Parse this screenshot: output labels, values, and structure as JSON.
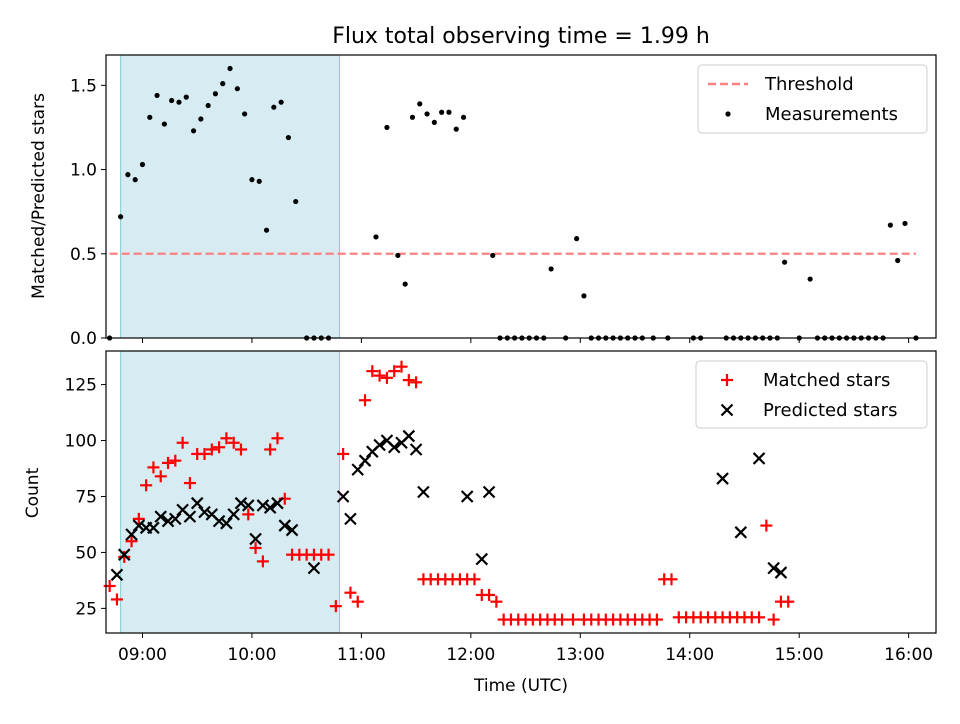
{
  "title": "Flux total observing time = 1.99 h",
  "xlabel": "Time (UTC)",
  "colors": {
    "threshold": "#ff8080",
    "matched": "#ff0000",
    "predicted": "#000000",
    "measurements": "#000000",
    "shade": "#add8e6"
  },
  "chart_data": [
    {
      "type": "scatter",
      "ylabel": "Matched/Predicted stars",
      "xlim": [
        "08:40",
        "16:15"
      ],
      "ylim": [
        0,
        1.68
      ],
      "yticks": [
        0.0,
        0.5,
        1.0,
        1.5
      ],
      "xticks": [
        "09:00",
        "10:00",
        "11:00",
        "12:00",
        "13:00",
        "14:00",
        "15:00",
        "16:00"
      ],
      "shaded_span": [
        "08:48",
        "10:48"
      ],
      "legend": {
        "position": "top-right",
        "entries": [
          "Threshold",
          "Measurements"
        ]
      },
      "threshold": {
        "name": "Threshold",
        "y": 0.5,
        "x_range": [
          "08:42",
          "16:04"
        ]
      },
      "series": [
        {
          "name": "Measurements",
          "points": [
            [
              "08:42",
              0.0
            ],
            [
              "08:48",
              0.72
            ],
            [
              "08:52",
              0.97
            ],
            [
              "08:56",
              0.94
            ],
            [
              "09:00",
              1.03
            ],
            [
              "09:04",
              1.31
            ],
            [
              "09:08",
              1.44
            ],
            [
              "09:12",
              1.27
            ],
            [
              "09:16",
              1.41
            ],
            [
              "09:20",
              1.4
            ],
            [
              "09:24",
              1.43
            ],
            [
              "09:28",
              1.23
            ],
            [
              "09:32",
              1.3
            ],
            [
              "09:36",
              1.38
            ],
            [
              "09:40",
              1.45
            ],
            [
              "09:44",
              1.51
            ],
            [
              "09:48",
              1.6
            ],
            [
              "09:52",
              1.48
            ],
            [
              "09:56",
              1.33
            ],
            [
              "10:00",
              0.94
            ],
            [
              "10:04",
              0.93
            ],
            [
              "10:08",
              0.64
            ],
            [
              "10:12",
              1.37
            ],
            [
              "10:16",
              1.4
            ],
            [
              "10:20",
              1.19
            ],
            [
              "10:24",
              0.81
            ],
            [
              "10:30",
              0.0
            ],
            [
              "10:34",
              0.0
            ],
            [
              "10:38",
              0.0
            ],
            [
              "10:42",
              0.0
            ],
            [
              "11:08",
              0.6
            ],
            [
              "11:14",
              1.25
            ],
            [
              "11:20",
              0.49
            ],
            [
              "11:24",
              0.32
            ],
            [
              "11:28",
              1.31
            ],
            [
              "11:32",
              1.39
            ],
            [
              "11:36",
              1.33
            ],
            [
              "11:40",
              1.28
            ],
            [
              "11:44",
              1.34
            ],
            [
              "11:48",
              1.34
            ],
            [
              "11:52",
              1.24
            ],
            [
              "11:56",
              1.31
            ],
            [
              "12:12",
              0.49
            ],
            [
              "12:16",
              0.0
            ],
            [
              "12:20",
              0.0
            ],
            [
              "12:24",
              0.0
            ],
            [
              "12:28",
              0.0
            ],
            [
              "12:32",
              0.0
            ],
            [
              "12:36",
              0.0
            ],
            [
              "12:40",
              0.0
            ],
            [
              "12:44",
              0.41
            ],
            [
              "12:52",
              0.0
            ],
            [
              "12:58",
              0.59
            ],
            [
              "13:02",
              0.25
            ],
            [
              "13:06",
              0.0
            ],
            [
              "13:10",
              0.0
            ],
            [
              "13:14",
              0.0
            ],
            [
              "13:18",
              0.0
            ],
            [
              "13:22",
              0.0
            ],
            [
              "13:26",
              0.0
            ],
            [
              "13:30",
              0.0
            ],
            [
              "13:34",
              0.0
            ],
            [
              "13:40",
              0.0
            ],
            [
              "13:48",
              0.0
            ],
            [
              "14:02",
              0.0
            ],
            [
              "14:06",
              0.0
            ],
            [
              "14:20",
              0.0
            ],
            [
              "14:24",
              0.0
            ],
            [
              "14:28",
              0.0
            ],
            [
              "14:32",
              0.0
            ],
            [
              "14:36",
              0.0
            ],
            [
              "14:40",
              0.0
            ],
            [
              "14:44",
              0.0
            ],
            [
              "14:48",
              0.0
            ],
            [
              "14:52",
              0.45
            ],
            [
              "15:00",
              0.0
            ],
            [
              "15:06",
              0.35
            ],
            [
              "15:10",
              0.0
            ],
            [
              "15:14",
              0.0
            ],
            [
              "15:18",
              0.0
            ],
            [
              "15:22",
              0.0
            ],
            [
              "15:26",
              0.0
            ],
            [
              "15:30",
              0.0
            ],
            [
              "15:34",
              0.0
            ],
            [
              "15:38",
              0.0
            ],
            [
              "15:42",
              0.0
            ],
            [
              "15:46",
              0.0
            ],
            [
              "15:50",
              0.67
            ],
            [
              "15:54",
              0.46
            ],
            [
              "15:58",
              0.68
            ],
            [
              "16:04",
              0.0
            ]
          ]
        }
      ]
    },
    {
      "type": "scatter",
      "ylabel": "Count",
      "xlabel": "Time (UTC)",
      "xlim": [
        "08:40",
        "16:15"
      ],
      "ylim": [
        14,
        140
      ],
      "yticks": [
        25,
        50,
        75,
        100,
        125
      ],
      "xticks": [
        "09:00",
        "10:00",
        "11:00",
        "12:00",
        "13:00",
        "14:00",
        "15:00",
        "16:00"
      ],
      "shaded_span": [
        "08:48",
        "10:48"
      ],
      "legend": {
        "position": "top-right",
        "entries": [
          "Matched stars",
          "Predicted stars"
        ]
      },
      "series": [
        {
          "name": "Matched stars",
          "marker": "plus",
          "points": [
            [
              "08:42",
              35
            ],
            [
              "08:46",
              29
            ],
            [
              "08:50",
              48
            ],
            [
              "08:54",
              55
            ],
            [
              "08:58",
              65
            ],
            [
              "09:02",
              80
            ],
            [
              "09:06",
              88
            ],
            [
              "09:10",
              84
            ],
            [
              "09:14",
              90
            ],
            [
              "09:18",
              91
            ],
            [
              "09:22",
              99
            ],
            [
              "09:26",
              81
            ],
            [
              "09:30",
              94
            ],
            [
              "09:34",
              94
            ],
            [
              "09:38",
              96
            ],
            [
              "09:42",
              97
            ],
            [
              "09:46",
              101
            ],
            [
              "09:50",
              99
            ],
            [
              "09:54",
              96
            ],
            [
              "09:58",
              67
            ],
            [
              "10:02",
              52
            ],
            [
              "10:06",
              46
            ],
            [
              "10:10",
              96
            ],
            [
              "10:14",
              101
            ],
            [
              "10:18",
              74
            ],
            [
              "10:22",
              49
            ],
            [
              "10:26",
              49
            ],
            [
              "10:30",
              49
            ],
            [
              "10:34",
              49
            ],
            [
              "10:38",
              49
            ],
            [
              "10:42",
              49
            ],
            [
              "10:46",
              26
            ],
            [
              "10:50",
              94
            ],
            [
              "10:54",
              32
            ],
            [
              "10:58",
              28
            ],
            [
              "11:02",
              118
            ],
            [
              "11:06",
              131
            ],
            [
              "11:10",
              129
            ],
            [
              "11:14",
              128
            ],
            [
              "11:18",
              131
            ],
            [
              "11:22",
              133
            ],
            [
              "11:26",
              127
            ],
            [
              "11:30",
              126
            ],
            [
              "11:34",
              38
            ],
            [
              "11:38",
              38
            ],
            [
              "11:42",
              38
            ],
            [
              "11:46",
              38
            ],
            [
              "11:50",
              38
            ],
            [
              "11:54",
              38
            ],
            [
              "11:58",
              38
            ],
            [
              "12:02",
              38
            ],
            [
              "12:06",
              31
            ],
            [
              "12:10",
              31
            ],
            [
              "12:14",
              28
            ],
            [
              "12:18",
              20
            ],
            [
              "12:22",
              20
            ],
            [
              "12:26",
              20
            ],
            [
              "12:30",
              20
            ],
            [
              "12:34",
              20
            ],
            [
              "12:38",
              20
            ],
            [
              "12:42",
              20
            ],
            [
              "12:46",
              20
            ],
            [
              "12:50",
              20
            ],
            [
              "12:56",
              20
            ],
            [
              "13:02",
              20
            ],
            [
              "13:06",
              20
            ],
            [
              "13:10",
              20
            ],
            [
              "13:14",
              20
            ],
            [
              "13:18",
              20
            ],
            [
              "13:22",
              20
            ],
            [
              "13:26",
              20
            ],
            [
              "13:30",
              20
            ],
            [
              "13:34",
              20
            ],
            [
              "13:38",
              20
            ],
            [
              "13:42",
              20
            ],
            [
              "13:46",
              38
            ],
            [
              "13:50",
              38
            ],
            [
              "13:54",
              21
            ],
            [
              "13:58",
              21
            ],
            [
              "14:02",
              21
            ],
            [
              "14:06",
              21
            ],
            [
              "14:10",
              21
            ],
            [
              "14:14",
              21
            ],
            [
              "14:18",
              21
            ],
            [
              "14:22",
              21
            ],
            [
              "14:26",
              21
            ],
            [
              "14:30",
              21
            ],
            [
              "14:34",
              21
            ],
            [
              "14:38",
              21
            ],
            [
              "14:42",
              62
            ],
            [
              "14:46",
              20
            ],
            [
              "14:50",
              28
            ],
            [
              "14:54",
              28
            ]
          ]
        },
        {
          "name": "Predicted stars",
          "marker": "x",
          "points": [
            [
              "08:46",
              40
            ],
            [
              "08:50",
              49
            ],
            [
              "08:54",
              58
            ],
            [
              "08:58",
              62
            ],
            [
              "09:02",
              61
            ],
            [
              "09:06",
              61
            ],
            [
              "09:10",
              66
            ],
            [
              "09:14",
              64
            ],
            [
              "09:18",
              65
            ],
            [
              "09:22",
              69
            ],
            [
              "09:26",
              66
            ],
            [
              "09:30",
              72
            ],
            [
              "09:34",
              68
            ],
            [
              "09:38",
              67
            ],
            [
              "09:42",
              64
            ],
            [
              "09:46",
              63
            ],
            [
              "09:50",
              67
            ],
            [
              "09:54",
              72
            ],
            [
              "09:58",
              71
            ],
            [
              "10:02",
              56
            ],
            [
              "10:06",
              71
            ],
            [
              "10:10",
              70
            ],
            [
              "10:14",
              72
            ],
            [
              "10:18",
              62
            ],
            [
              "10:22",
              60
            ],
            [
              "10:34",
              43
            ],
            [
              "10:50",
              75
            ],
            [
              "10:54",
              65
            ],
            [
              "10:58",
              87
            ],
            [
              "11:02",
              91
            ],
            [
              "11:06",
              95
            ],
            [
              "11:10",
              98
            ],
            [
              "11:14",
              100
            ],
            [
              "11:18",
              97
            ],
            [
              "11:22",
              99
            ],
            [
              "11:26",
              102
            ],
            [
              "11:30",
              96
            ],
            [
              "11:34",
              77
            ],
            [
              "11:58",
              75
            ],
            [
              "12:06",
              47
            ],
            [
              "12:10",
              77
            ],
            [
              "14:18",
              83
            ],
            [
              "14:28",
              59
            ],
            [
              "14:38",
              92
            ],
            [
              "14:46",
              43
            ],
            [
              "14:50",
              41
            ]
          ]
        }
      ]
    }
  ]
}
